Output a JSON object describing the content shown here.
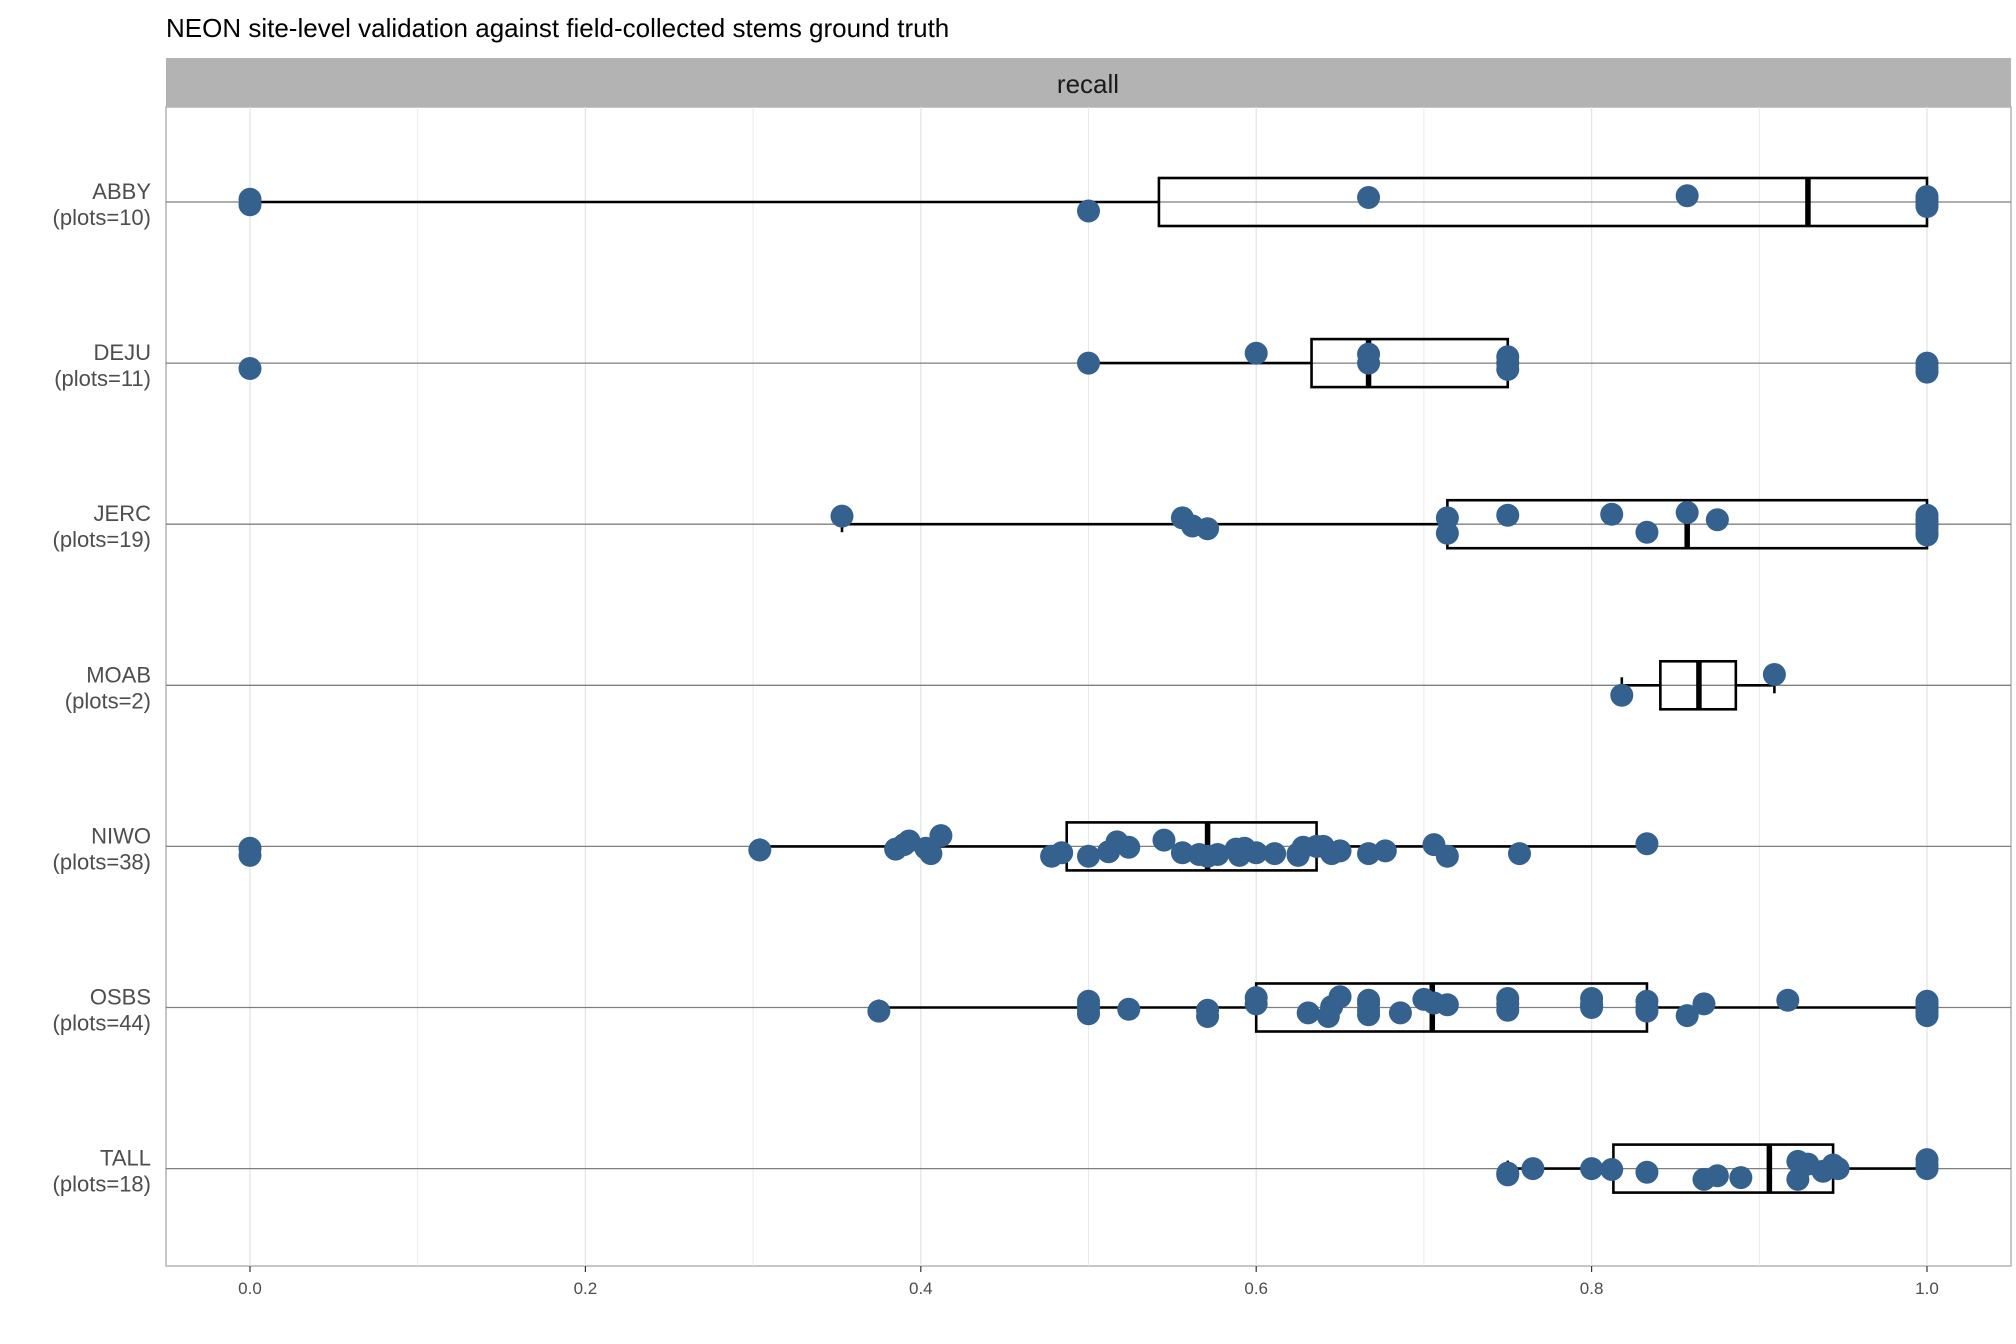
{
  "chart_data": {
    "type": "boxplot",
    "title": "NEON site-level validation against field-collected stems ground truth",
    "facet_label": "recall",
    "xlim": [
      -0.05,
      1.05
    ],
    "x_ticks": [
      "0.0",
      "0.2",
      "0.4",
      "0.6",
      "0.8",
      "1.0"
    ],
    "point_color": "#35618F",
    "grid": true,
    "sites": [
      {
        "name": "ABBY",
        "plots_label": "(plots=10)",
        "box": {
          "min": 0.0,
          "q1": 0.542,
          "median": 0.929,
          "q3": 1.0,
          "max": 1.0
        },
        "points": [
          [
            0.0,
            -0.03
          ],
          [
            0.0,
            0.03
          ],
          [
            0.5,
            0.1
          ],
          [
            0.667,
            -0.05
          ],
          [
            0.857,
            -0.07
          ],
          [
            1.0,
            0.03
          ],
          [
            1.0,
            -0.03
          ],
          [
            1.0,
            0.05
          ],
          [
            1.0,
            -0.06
          ],
          [
            1.0,
            0.0
          ]
        ]
      },
      {
        "name": "DEJU",
        "plots_label": "(plots=11)",
        "box": {
          "min": 0.5,
          "q1": 0.633,
          "median": 0.667,
          "q3": 0.75,
          "max": 0.75
        },
        "points": [
          [
            0.0,
            0.06
          ],
          [
            0.5,
            0.0
          ],
          [
            0.6,
            -0.11
          ],
          [
            0.667,
            -0.1
          ],
          [
            0.667,
            0.0
          ],
          [
            0.75,
            -0.07
          ],
          [
            0.75,
            0.0
          ],
          [
            0.75,
            0.07
          ],
          [
            1.0,
            0.0
          ],
          [
            1.0,
            0.1
          ],
          [
            1.0,
            0.05
          ]
        ]
      },
      {
        "name": "JERC",
        "plots_label": "(plots=19)",
        "box": {
          "min": 0.353,
          "q1": 0.714,
          "median": 0.857,
          "q3": 1.0,
          "max": 1.0
        },
        "points": [
          [
            0.353,
            -0.09
          ],
          [
            0.556,
            -0.07
          ],
          [
            0.562,
            0.02
          ],
          [
            0.571,
            0.05
          ],
          [
            0.714,
            -0.07
          ],
          [
            0.714,
            0.1
          ],
          [
            0.75,
            -0.1
          ],
          [
            0.812,
            -0.11
          ],
          [
            0.833,
            0.09
          ],
          [
            0.857,
            -0.13
          ],
          [
            0.875,
            -0.05
          ],
          [
            1.0,
            -0.1
          ],
          [
            1.0,
            -0.05
          ],
          [
            1.0,
            0.0
          ],
          [
            1.0,
            0.04
          ],
          [
            1.0,
            0.09
          ],
          [
            1.0,
            0.12
          ],
          [
            1.0,
            -0.02
          ],
          [
            1.0,
            0.02
          ]
        ]
      },
      {
        "name": "MOAB",
        "plots_label": "(plots=2)",
        "box": {
          "min": 0.818,
          "q1": 0.841,
          "median": 0.864,
          "q3": 0.886,
          "max": 0.909
        },
        "points": [
          [
            0.818,
            0.11
          ],
          [
            0.909,
            -0.12
          ]
        ]
      },
      {
        "name": "NIWO",
        "plots_label": "(plots=38)",
        "box": {
          "min": 0.304,
          "q1": 0.487,
          "median": 0.571,
          "q3": 0.636,
          "max": 0.833
        },
        "points": [
          [
            0.0,
            0.02
          ],
          [
            0.0,
            0.1
          ],
          [
            0.304,
            0.04
          ],
          [
            0.385,
            0.03
          ],
          [
            0.39,
            -0.02
          ],
          [
            0.393,
            -0.06
          ],
          [
            0.403,
            0.02
          ],
          [
            0.406,
            0.08
          ],
          [
            0.412,
            -0.12
          ],
          [
            0.478,
            0.11
          ],
          [
            0.484,
            0.07
          ],
          [
            0.5,
            0.11
          ],
          [
            0.512,
            0.06
          ],
          [
            0.517,
            -0.05
          ],
          [
            0.524,
            0.01
          ],
          [
            0.545,
            -0.07
          ],
          [
            0.556,
            0.07
          ],
          [
            0.566,
            0.09
          ],
          [
            0.571,
            0.11
          ],
          [
            0.577,
            0.09
          ],
          [
            0.588,
            0.03
          ],
          [
            0.59,
            0.1
          ],
          [
            0.593,
            0.02
          ],
          [
            0.6,
            0.07
          ],
          [
            0.611,
            0.08
          ],
          [
            0.625,
            0.08
          ],
          [
            0.625,
            0.1
          ],
          [
            0.628,
            0.01
          ],
          [
            0.636,
            0.0
          ],
          [
            0.64,
            0.0
          ],
          [
            0.645,
            0.08
          ],
          [
            0.65,
            0.05
          ],
          [
            0.667,
            0.08
          ],
          [
            0.677,
            0.05
          ],
          [
            0.706,
            -0.02
          ],
          [
            0.714,
            0.11
          ],
          [
            0.757,
            0.08
          ],
          [
            0.833,
            -0.03
          ]
        ]
      },
      {
        "name": "OSBS",
        "plots_label": "(plots=44)",
        "box": {
          "min": 0.375,
          "q1": 0.6,
          "median": 0.705,
          "q3": 0.833,
          "max": 1.0
        },
        "points": [
          [
            0.375,
            0.04
          ],
          [
            0.5,
            -0.07
          ],
          [
            0.5,
            -0.02
          ],
          [
            0.5,
            0.02
          ],
          [
            0.5,
            0.07
          ],
          [
            0.524,
            0.02
          ],
          [
            0.571,
            0.03
          ],
          [
            0.571,
            0.1
          ],
          [
            0.6,
            -0.11
          ],
          [
            0.6,
            -0.04
          ],
          [
            0.631,
            0.06
          ],
          [
            0.643,
            0.1
          ],
          [
            0.645,
            -0.01
          ],
          [
            0.65,
            -0.12
          ],
          [
            0.667,
            -0.08
          ],
          [
            0.667,
            -0.04
          ],
          [
            0.667,
            0.03
          ],
          [
            0.667,
            0.08
          ],
          [
            0.686,
            0.06
          ],
          [
            0.7,
            -0.09
          ],
          [
            0.706,
            -0.05
          ],
          [
            0.714,
            -0.03
          ],
          [
            0.75,
            -0.1
          ],
          [
            0.75,
            -0.04
          ],
          [
            0.75,
            0.03
          ],
          [
            0.8,
            -0.1
          ],
          [
            0.8,
            -0.04
          ],
          [
            0.8,
            -0.02
          ],
          [
            0.8,
            0.0
          ],
          [
            0.833,
            -0.07
          ],
          [
            0.833,
            0.0
          ],
          [
            0.833,
            0.04
          ],
          [
            0.857,
            0.09
          ],
          [
            0.867,
            -0.04
          ],
          [
            0.917,
            -0.08
          ],
          [
            1.0,
            -0.07
          ],
          [
            1.0,
            -0.04
          ],
          [
            1.0,
            -0.01
          ],
          [
            1.0,
            0.02
          ],
          [
            1.0,
            0.05
          ],
          [
            1.0,
            0.09
          ],
          [
            1.0,
            0.0
          ],
          [
            1.0,
            -0.03
          ],
          [
            1.0,
            0.04
          ]
        ]
      },
      {
        "name": "TALL",
        "plots_label": "(plots=18)",
        "box": {
          "min": 0.75,
          "q1": 0.813,
          "median": 0.906,
          "q3": 0.944,
          "max": 1.0
        },
        "points": [
          [
            0.75,
            0.05
          ],
          [
            0.75,
            0.07
          ],
          [
            0.765,
            0.0
          ],
          [
            0.8,
            0.0
          ],
          [
            0.812,
            0.01
          ],
          [
            0.833,
            0.04
          ],
          [
            0.867,
            0.12
          ],
          [
            0.875,
            0.08
          ],
          [
            0.889,
            0.1
          ],
          [
            0.923,
            0.12
          ],
          [
            0.923,
            -0.08
          ],
          [
            0.929,
            -0.05
          ],
          [
            0.938,
            0.03
          ],
          [
            0.944,
            -0.04
          ],
          [
            0.947,
            0.0
          ],
          [
            1.0,
            -0.1
          ],
          [
            1.0,
            0.0
          ],
          [
            1.0,
            -0.04
          ]
        ]
      }
    ]
  }
}
